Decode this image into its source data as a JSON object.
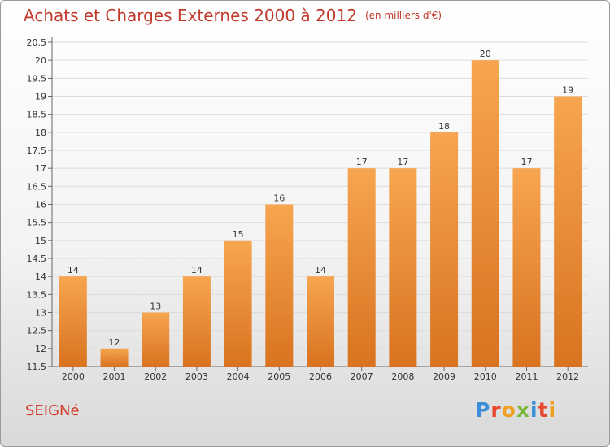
{
  "header": {
    "title": "Achats et Charges Externes 2000 à 2012",
    "unit": "(en milliers d'€)"
  },
  "footer": {
    "location": "SEIGNé",
    "brand": "Proxiti"
  },
  "colors": {
    "bar_light": "#f7a550",
    "bar_dark": "#d9731f",
    "title": "#c0392b",
    "location": "#d23a2a",
    "logo_letters": [
      "#3a8fd8",
      "#e8482f",
      "#f0a020",
      "#7ab83a",
      "#3a8fd8",
      "#e8482f",
      "#f0a020"
    ]
  },
  "chart_data": {
    "type": "bar",
    "title": "Achats et Charges Externes 2000 à 2012",
    "xlabel": "",
    "ylabel": "",
    "categories": [
      "2000",
      "2001",
      "2002",
      "2003",
      "2004",
      "2005",
      "2006",
      "2007",
      "2008",
      "2009",
      "2010",
      "2011",
      "2012"
    ],
    "values": [
      14,
      12,
      13,
      14,
      15,
      16,
      14,
      17,
      17,
      18,
      20,
      17,
      19
    ],
    "ylim": [
      11.5,
      20.5
    ],
    "yticks": [
      "11.5",
      "12",
      "12.5",
      "13",
      "13.5",
      "14",
      "14.5",
      "15",
      "15.5",
      "16",
      "16.5",
      "17",
      "17.5",
      "18",
      "18.5",
      "19",
      "19.5",
      "20",
      "20.5"
    ],
    "grid": true,
    "legend": "none"
  }
}
